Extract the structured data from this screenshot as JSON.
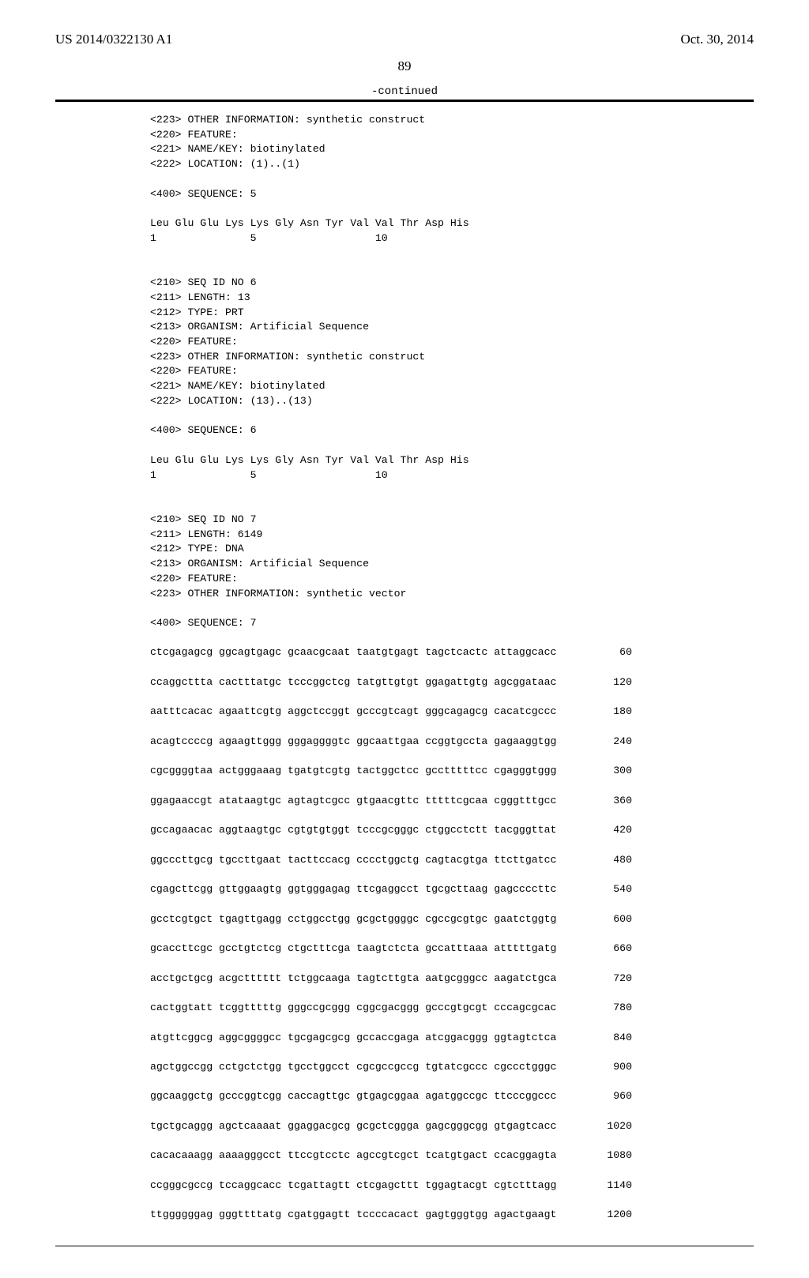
{
  "header": {
    "pubnum": "US 2014/0322130 A1",
    "date": "Oct. 30, 2014"
  },
  "page_number": "89",
  "continued_label": "-continued",
  "blocks": [
    {
      "type": "meta",
      "lines": [
        "<223> OTHER INFORMATION: synthetic construct",
        "<220> FEATURE:",
        "<221> NAME/KEY: biotinylated",
        "<222> LOCATION: (1)..(1)"
      ]
    },
    {
      "type": "blank"
    },
    {
      "type": "meta",
      "lines": [
        "<400> SEQUENCE: 5"
      ]
    },
    {
      "type": "blank"
    },
    {
      "type": "meta",
      "lines": [
        "Leu Glu Glu Lys Lys Gly Asn Tyr Val Val Thr Asp His",
        "1               5                   10"
      ]
    },
    {
      "type": "blank"
    },
    {
      "type": "blank"
    },
    {
      "type": "meta",
      "lines": [
        "<210> SEQ ID NO 6",
        "<211> LENGTH: 13",
        "<212> TYPE: PRT",
        "<213> ORGANISM: Artificial Sequence",
        "<220> FEATURE:",
        "<223> OTHER INFORMATION: synthetic construct",
        "<220> FEATURE:",
        "<221> NAME/KEY: biotinylated",
        "<222> LOCATION: (13)..(13)"
      ]
    },
    {
      "type": "blank"
    },
    {
      "type": "meta",
      "lines": [
        "<400> SEQUENCE: 6"
      ]
    },
    {
      "type": "blank"
    },
    {
      "type": "meta",
      "lines": [
        "Leu Glu Glu Lys Lys Gly Asn Tyr Val Val Thr Asp His",
        "1               5                   10"
      ]
    },
    {
      "type": "blank"
    },
    {
      "type": "blank"
    },
    {
      "type": "meta",
      "lines": [
        "<210> SEQ ID NO 7",
        "<211> LENGTH: 6149",
        "<212> TYPE: DNA",
        "<213> ORGANISM: Artificial Sequence",
        "<220> FEATURE:",
        "<223> OTHER INFORMATION: synthetic vector"
      ]
    },
    {
      "type": "blank"
    },
    {
      "type": "meta",
      "lines": [
        "<400> SEQUENCE: 7"
      ]
    },
    {
      "type": "blank"
    }
  ],
  "seqrows": [
    {
      "l": "ctcgagagcg ggcagtgagc gcaacgcaat taatgtgagt tagctcactc attaggcacc",
      "r": "60"
    },
    {
      "l": "ccaggcttta cactttatgc tcccggctcg tatgttgtgt ggagattgtg agcggataac",
      "r": "120"
    },
    {
      "l": "aatttcacac agaattcgtg aggctccggt gcccgtcagt gggcagagcg cacatcgccc",
      "r": "180"
    },
    {
      "l": "acagtccccg agaagttggg gggaggggtc ggcaattgaa ccggtgccta gagaaggtgg",
      "r": "240"
    },
    {
      "l": "cgcggggtaa actgggaaag tgatgtcgtg tactggctcc gcctttttcc cgagggtggg",
      "r": "300"
    },
    {
      "l": "ggagaaccgt atataagtgc agtagtcgcc gtgaacgttc tttttcgcaa cgggtttgcc",
      "r": "360"
    },
    {
      "l": "gccagaacac aggtaagtgc cgtgtgtggt tcccgcgggc ctggcctctt tacgggttat",
      "r": "420"
    },
    {
      "l": "ggcccttgcg tgccttgaat tacttccacg cccctggctg cagtacgtga ttcttgatcc",
      "r": "480"
    },
    {
      "l": "cgagcttcgg gttggaagtg ggtgggagag ttcgaggcct tgcgcttaag gagccccttc",
      "r": "540"
    },
    {
      "l": "gcctcgtgct tgagttgagg cctggcctgg gcgctggggc cgccgcgtgc gaatctggtg",
      "r": "600"
    },
    {
      "l": "gcaccttcgc gcctgtctcg ctgctttcga taagtctcta gccatttaaa atttttgatg",
      "r": "660"
    },
    {
      "l": "acctgctgcg acgctttttt tctggcaaga tagtcttgta aatgcgggcc aagatctgca",
      "r": "720"
    },
    {
      "l": "cactggtatt tcggtttttg gggccgcggg cggcgacggg gcccgtgcgt cccagcgcac",
      "r": "780"
    },
    {
      "l": "atgttcggcg aggcggggcc tgcgagcgcg gccaccgaga atcggacggg ggtagtctca",
      "r": "840"
    },
    {
      "l": "agctggccgg cctgctctgg tgcctggcct cgcgccgccg tgtatcgccc cgccctgggc",
      "r": "900"
    },
    {
      "l": "ggcaaggctg gcccggtcgg caccagttgc gtgagcggaa agatggccgc ttcccggccc",
      "r": "960"
    },
    {
      "l": "tgctgcaggg agctcaaaat ggaggacgcg gcgctcggga gagcgggcgg gtgagtcacc",
      "r": "1020"
    },
    {
      "l": "cacacaaagg aaaagggcct ttccgtcctc agccgtcgct tcatgtgact ccacggagta",
      "r": "1080"
    },
    {
      "l": "ccgggcgccg tccaggcacc tcgattagtt ctcgagcttt tggagtacgt cgtctttagg",
      "r": "1140"
    },
    {
      "l": "ttggggggag gggttttatg cgatggagtt tccccacact gagtgggtgg agactgaagt",
      "r": "1200"
    }
  ]
}
